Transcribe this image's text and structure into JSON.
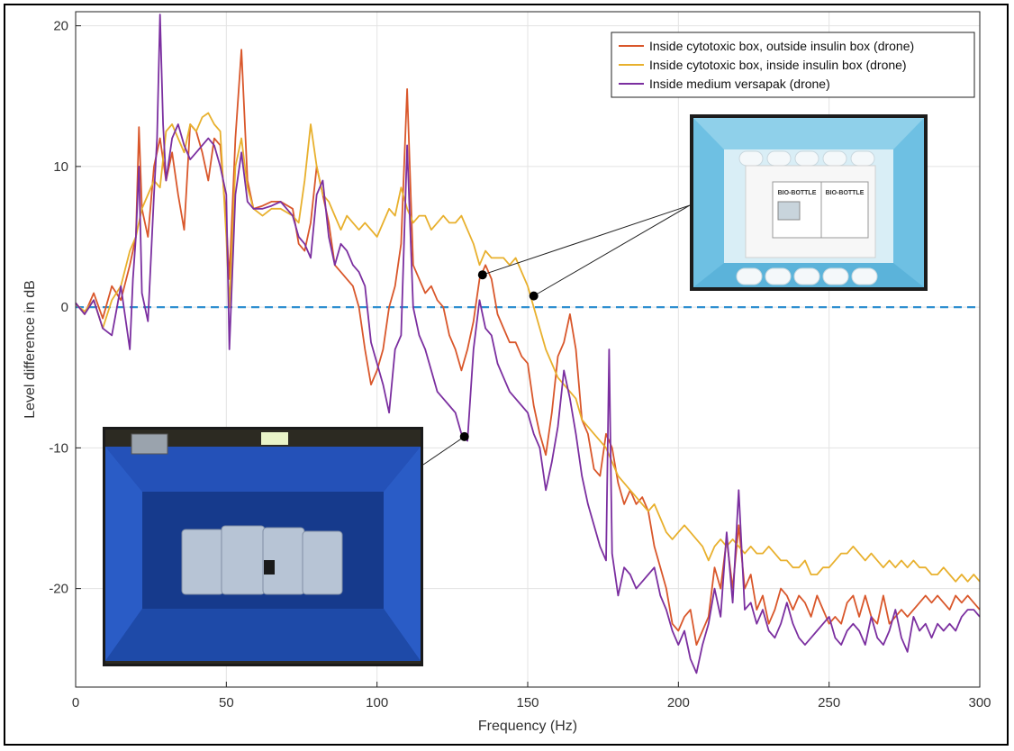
{
  "chart_data": {
    "type": "line",
    "title": "",
    "xlabel": "Frequency (Hz)",
    "ylabel": "Level difference in dB",
    "xlim": [
      0,
      300
    ],
    "ylim": [
      -27,
      21
    ],
    "xticks": [
      0,
      50,
      100,
      150,
      200,
      250,
      300
    ],
    "yticks": [
      -20,
      -10,
      0,
      10,
      20
    ],
    "grid": true,
    "legend_position": "top-right",
    "reference_line": {
      "y": 0,
      "style": "dashed",
      "color": "#2f8fd0"
    },
    "series": [
      {
        "name": "Inside cytotoxic box, outside insulin box (drone)",
        "color": "#d9572b",
        "x": [
          0,
          3,
          6,
          9,
          12,
          15,
          18,
          20,
          21,
          22,
          24,
          26,
          28,
          30,
          32,
          34,
          36,
          38,
          40,
          42,
          44,
          46,
          48,
          50,
          51,
          53,
          55,
          57,
          59,
          62,
          65,
          68,
          72,
          74,
          76,
          78,
          80,
          82,
          84,
          86,
          88,
          90,
          92,
          94,
          96,
          98,
          100,
          102,
          104,
          106,
          108,
          110,
          112,
          114,
          116,
          118,
          120,
          122,
          124,
          126,
          128,
          130,
          132,
          134,
          136,
          138,
          140,
          142,
          144,
          146,
          148,
          150,
          152,
          154,
          156,
          158,
          160,
          162,
          164,
          166,
          168,
          170,
          172,
          174,
          176,
          178,
          180,
          182,
          184,
          186,
          188,
          190,
          192,
          194,
          196,
          198,
          200,
          202,
          204,
          206,
          208,
          210,
          212,
          214,
          216,
          218,
          220,
          222,
          224,
          226,
          228,
          230,
          232,
          234,
          236,
          238,
          240,
          242,
          244,
          246,
          248,
          250,
          252,
          254,
          256,
          258,
          260,
          262,
          264,
          266,
          268,
          270,
          272,
          274,
          276,
          278,
          280,
          282,
          284,
          286,
          288,
          290,
          292,
          294,
          296,
          298,
          300
        ],
        "values": [
          0.3,
          -0.5,
          1.0,
          -0.8,
          1.5,
          0.5,
          3.0,
          5.0,
          12.8,
          7.0,
          5.0,
          10.0,
          12.0,
          9.0,
          11.0,
          8.0,
          5.5,
          13.0,
          12.5,
          11.0,
          9.0,
          12.0,
          11.5,
          6.0,
          2.0,
          12.0,
          18.3,
          9.0,
          7.0,
          7.2,
          7.5,
          7.5,
          7.0,
          4.5,
          4.0,
          6.0,
          10.0,
          8.0,
          6.0,
          3.0,
          2.5,
          2.0,
          1.5,
          0.0,
          -3.0,
          -5.5,
          -4.5,
          -3.0,
          0.0,
          1.5,
          4.5,
          15.5,
          3.0,
          2.0,
          1.0,
          1.5,
          0.5,
          0.0,
          -2.0,
          -3.0,
          -4.5,
          -3.0,
          -1.0,
          2.0,
          3.0,
          2.0,
          -0.5,
          -1.5,
          -2.5,
          -2.5,
          -3.5,
          -4.0,
          -7.0,
          -9.0,
          -10.5,
          -7.5,
          -3.5,
          -2.5,
          -0.5,
          -3.0,
          -8.0,
          -9.0,
          -11.5,
          -12.0,
          -9.0,
          -10.0,
          -12.5,
          -14.0,
          -13.0,
          -14.0,
          -13.5,
          -14.5,
          -17.0,
          -18.5,
          -20.0,
          -22.5,
          -23.0,
          -22.0,
          -21.5,
          -24.0,
          -23.0,
          -22.0,
          -18.5,
          -20.0,
          -16.5,
          -20.0,
          -15.5,
          -20.0,
          -19.0,
          -21.5,
          -20.5,
          -22.5,
          -21.5,
          -20.0,
          -20.5,
          -21.5,
          -20.5,
          -21.0,
          -22.0,
          -20.5,
          -21.5,
          -22.5,
          -22.0,
          -22.5,
          -21.0,
          -20.5,
          -22.0,
          -20.5,
          -22.0,
          -22.5,
          -20.5,
          -22.5,
          -22.0,
          -21.5,
          -22.0,
          -21.5,
          -21.0,
          -20.5,
          -21.0,
          -20.5,
          -21.0,
          -21.5,
          -20.5,
          -21.0,
          -20.5,
          -21.0,
          -21.5
        ]
      },
      {
        "name": "Inside cytotoxic box, inside insulin box (drone)",
        "color": "#e8b02d",
        "x": [
          0,
          3,
          6,
          9,
          12,
          15,
          18,
          20,
          22,
          24,
          26,
          28,
          30,
          32,
          34,
          36,
          38,
          40,
          42,
          44,
          46,
          48,
          50,
          51,
          53,
          55,
          57,
          59,
          62,
          65,
          68,
          72,
          74,
          76,
          78,
          80,
          82,
          84,
          86,
          88,
          90,
          92,
          94,
          96,
          98,
          100,
          102,
          104,
          106,
          108,
          110,
          112,
          114,
          116,
          118,
          120,
          122,
          124,
          126,
          128,
          130,
          132,
          134,
          136,
          138,
          140,
          142,
          144,
          146,
          148,
          150,
          152,
          154,
          156,
          158,
          160,
          162,
          164,
          166,
          168,
          170,
          172,
          174,
          176,
          178,
          180,
          182,
          184,
          186,
          188,
          190,
          192,
          194,
          196,
          198,
          200,
          202,
          204,
          206,
          208,
          210,
          212,
          214,
          216,
          218,
          220,
          222,
          224,
          226,
          228,
          230,
          232,
          234,
          236,
          238,
          240,
          242,
          244,
          246,
          248,
          250,
          252,
          254,
          256,
          258,
          260,
          262,
          264,
          266,
          268,
          270,
          272,
          274,
          276,
          278,
          280,
          282,
          284,
          286,
          288,
          290,
          292,
          294,
          296,
          298,
          300
        ],
        "values": [
          0.2,
          -0.3,
          0.5,
          -1.5,
          0.5,
          1.5,
          4.0,
          5.0,
          7.0,
          8.0,
          9.0,
          8.5,
          12.5,
          13.0,
          12.0,
          11.0,
          13.0,
          12.5,
          13.5,
          13.8,
          13.0,
          12.5,
          5.0,
          0.0,
          10.0,
          12.0,
          8.5,
          7.0,
          6.5,
          7.0,
          7.0,
          6.5,
          6.0,
          9.0,
          13.0,
          10.0,
          8.0,
          7.5,
          6.5,
          5.5,
          6.5,
          6.0,
          5.5,
          6.0,
          5.5,
          5.0,
          6.0,
          7.0,
          6.5,
          8.5,
          7.0,
          6.0,
          6.5,
          6.5,
          5.5,
          6.0,
          6.5,
          6.0,
          6.0,
          6.5,
          5.5,
          4.5,
          3.0,
          4.0,
          3.5,
          3.5,
          3.5,
          3.0,
          3.5,
          2.5,
          1.5,
          0.0,
          -1.5,
          -3.0,
          -4.0,
          -5.0,
          -5.5,
          -6.0,
          -6.5,
          -8.0,
          -8.5,
          -9.0,
          -9.5,
          -10.0,
          -11.0,
          -12.0,
          -12.5,
          -13.0,
          -13.5,
          -14.0,
          -14.5,
          -14.0,
          -15.0,
          -16.0,
          -16.5,
          -16.0,
          -15.5,
          -16.0,
          -16.5,
          -17.0,
          -18.0,
          -17.0,
          -16.5,
          -17.0,
          -16.5,
          -17.0,
          -17.5,
          -17.0,
          -17.5,
          -17.5,
          -17.0,
          -17.5,
          -18.0,
          -18.0,
          -18.5,
          -18.5,
          -18.0,
          -19.0,
          -19.0,
          -18.5,
          -18.5,
          -18.0,
          -17.5,
          -17.5,
          -17.0,
          -17.5,
          -18.0,
          -17.5,
          -18.0,
          -18.5,
          -18.0,
          -18.5,
          -18.0,
          -18.5,
          -18.0,
          -18.5,
          -18.5,
          -19.0,
          -19.0,
          -18.5,
          -19.0,
          -19.5,
          -19.0,
          -19.5,
          -19.0,
          -19.5
        ]
      },
      {
        "name": "Inside medium versapak (drone)",
        "color": "#7b2fa0",
        "x": [
          0,
          3,
          6,
          9,
          12,
          15,
          18,
          19,
          20,
          21,
          22,
          24,
          26,
          27,
          28,
          29,
          30,
          32,
          34,
          36,
          38,
          40,
          42,
          44,
          46,
          48,
          50,
          51,
          53,
          55,
          57,
          59,
          62,
          65,
          68,
          72,
          74,
          76,
          78,
          80,
          82,
          84,
          86,
          88,
          90,
          92,
          94,
          96,
          98,
          100,
          102,
          104,
          106,
          108,
          110,
          112,
          114,
          116,
          118,
          120,
          122,
          124,
          126,
          128,
          130,
          132,
          134,
          136,
          138,
          140,
          142,
          144,
          146,
          148,
          150,
          152,
          154,
          156,
          158,
          160,
          162,
          164,
          166,
          168,
          170,
          172,
          174,
          176,
          177,
          178,
          180,
          182,
          184,
          186,
          188,
          190,
          192,
          194,
          196,
          198,
          200,
          202,
          204,
          206,
          208,
          210,
          212,
          214,
          216,
          218,
          220,
          222,
          224,
          226,
          228,
          230,
          232,
          234,
          236,
          238,
          240,
          242,
          244,
          246,
          248,
          250,
          252,
          254,
          256,
          258,
          260,
          262,
          264,
          266,
          268,
          270,
          272,
          274,
          276,
          278,
          280,
          282,
          284,
          286,
          288,
          290,
          292,
          294,
          296,
          298,
          300
        ],
        "values": [
          0.3,
          -0.5,
          0.5,
          -1.5,
          -2.0,
          1.5,
          -3.0,
          2.0,
          5.0,
          10.0,
          1.0,
          -1.0,
          8.0,
          12.0,
          20.8,
          13.0,
          9.0,
          12.0,
          13.0,
          11.5,
          10.5,
          11.0,
          11.5,
          12.0,
          11.5,
          10.0,
          8.0,
          -3.0,
          8.0,
          11.0,
          7.5,
          7.0,
          7.0,
          7.2,
          7.5,
          6.5,
          5.0,
          4.5,
          3.5,
          8.0,
          9.0,
          5.0,
          3.0,
          4.5,
          4.0,
          3.0,
          2.5,
          1.5,
          -2.5,
          -4.0,
          -5.5,
          -7.5,
          -3.0,
          -2.0,
          11.5,
          0.0,
          -2.0,
          -3.0,
          -4.5,
          -6.0,
          -6.5,
          -7.0,
          -7.5,
          -9.0,
          -9.5,
          -3.0,
          0.5,
          -1.5,
          -2.0,
          -4.0,
          -5.0,
          -6.0,
          -6.5,
          -7.0,
          -7.5,
          -9.0,
          -10.0,
          -13.0,
          -11.0,
          -8.5,
          -4.5,
          -6.5,
          -9.0,
          -12.0,
          -14.0,
          -15.5,
          -17.0,
          -18.0,
          -3.0,
          -17.5,
          -20.5,
          -18.5,
          -19.0,
          -20.0,
          -19.5,
          -19.0,
          -18.5,
          -20.5,
          -21.5,
          -23.0,
          -24.0,
          -23.0,
          -25.0,
          -26.0,
          -24.0,
          -22.5,
          -20.0,
          -22.0,
          -16.0,
          -21.0,
          -13.0,
          -21.5,
          -21.0,
          -22.5,
          -21.5,
          -23.0,
          -23.5,
          -22.5,
          -21.0,
          -22.5,
          -23.5,
          -24.0,
          -23.5,
          -23.0,
          -22.5,
          -22.0,
          -23.5,
          -24.0,
          -23.0,
          -22.5,
          -23.0,
          -24.0,
          -22.0,
          -23.5,
          -24.0,
          -23.0,
          -21.5,
          -23.5,
          -24.5,
          -22.0,
          -23.0,
          -22.5,
          -23.5,
          -22.5,
          -23.0,
          -22.5,
          -23.0,
          -22.0,
          -21.5,
          -21.5,
          -22.0
        ]
      }
    ],
    "callouts": [
      {
        "x": 135,
        "y": 2.3,
        "target": "bio-bottle-photo"
      },
      {
        "x": 152,
        "y": 0.8,
        "target": "bio-bottle-photo"
      },
      {
        "x": 129,
        "y": -9.2,
        "target": "versapak-photo"
      }
    ]
  },
  "insets": {
    "bio_bottle": {
      "label_left": "BIO-BOTTLE",
      "label_right": "BIO-BOTTLE",
      "box_color": "#6ec0e3",
      "inner_color": "#d9eef6"
    },
    "versapak": {
      "bag_color": "#1d3f9a",
      "floor_color": "#1e4aa8"
    }
  }
}
